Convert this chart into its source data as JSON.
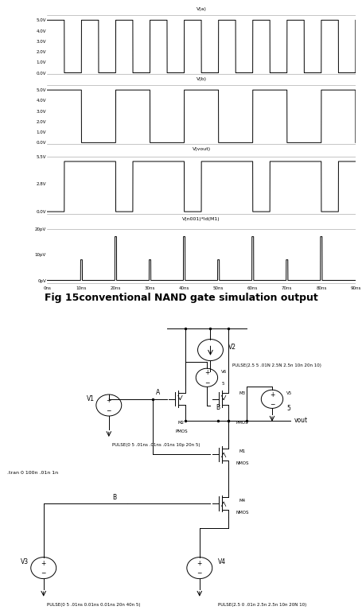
{
  "title": "Fig 15conventional NAND gate simulation output",
  "subplot_titles": [
    "V(a)",
    "V(b)",
    "V(vout)",
    "V(n001)*Id(M1)"
  ],
  "time_ticks": [
    "0ns",
    "10ns",
    "20ns",
    "30ns",
    "40ns",
    "50ns",
    "60ns",
    "70ns",
    "80ns",
    "90ns"
  ],
  "Va_yticks_labels": [
    "0.0V",
    "1.0V",
    "2.0V",
    "3.0V",
    "4.0V",
    "5.0V"
  ],
  "Va_yticks_vals": [
    0.0,
    1.0,
    2.0,
    3.0,
    4.0,
    5.0
  ],
  "Vb_yticks_labels": [
    "0.0V",
    "1.0V",
    "2.0V",
    "3.0V",
    "4.0V",
    "5.0V"
  ],
  "Vb_yticks_vals": [
    0.0,
    1.0,
    2.0,
    3.0,
    4.0,
    5.0
  ],
  "Vvout_yticks_labels": [
    "0.0V",
    "2.8V",
    "5.5V"
  ],
  "Vvout_yticks_vals": [
    0.0,
    2.8,
    5.5
  ],
  "Vpower_yticks_labels": [
    "0pV",
    "10pV",
    "20pV"
  ],
  "Vpower_yticks_vals": [
    0.0,
    1e-11,
    2e-11
  ],
  "background_color": "#ffffff",
  "waveform_color": "#000000",
  "label_fontsize": 4.5,
  "tick_fontsize": 4.0,
  "title_fontsize": 9.0,
  "schematic_texts": {
    "V2": "V2",
    "pulse_v2": "PULSE(2.5 5 .01N 2.5N 2.5n 10n 20n 10)",
    "V6": "V6",
    "V6_val": "5",
    "V5_val": "5",
    "M2": "M2",
    "M2_type": "PMOS",
    "M3": "M3",
    "M3_type": "PMOS",
    "M1": "M1",
    "M1_type": "NMOS",
    "M4": "M4",
    "M4_type": "NMOS",
    "V1": "V1",
    "pulse_v1": "PULSE(0 5 .01ns .01ns .01ns 10p 20n 5)",
    "V3": "V3",
    "pulse_v3": "PULSE(0 5 .01ns 0.01ns 0.01ns 20n 40n 5)",
    "V4": "V4",
    "pulse_v4": "PULSE(2.5 0 .01n 2.5n 2.5n 10n 20N 10)",
    "node_A": "A",
    "node_B": "B",
    "node_B2": "B",
    "vout": "vout",
    "tran": ".tran 0 100n .01n 1n"
  }
}
